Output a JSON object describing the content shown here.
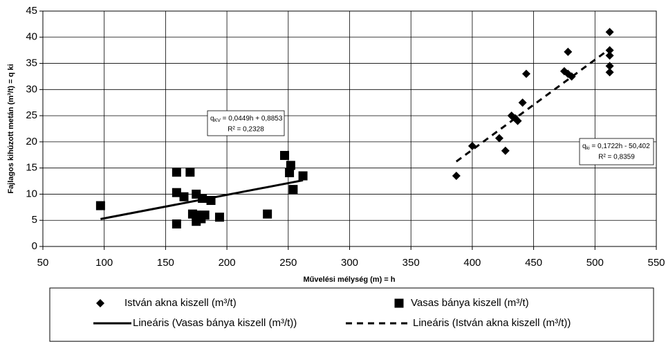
{
  "chart_data": {
    "type": "scatter",
    "xlabel": "Művelési mélység (m) = h",
    "ylabel": "Fajlagos kihúzott metán (m³/t) = q  ki",
    "xlim": [
      50,
      550
    ],
    "xticks": [
      50,
      100,
      150,
      200,
      250,
      300,
      350,
      400,
      450,
      500,
      550
    ],
    "ylim": [
      0,
      45
    ],
    "yticks": [
      0,
      5,
      10,
      15,
      20,
      25,
      30,
      35,
      40,
      45
    ],
    "grid": true,
    "series": [
      {
        "name": "István akna kiszell (m³/t)",
        "marker": "diamond",
        "color": "#000000",
        "x": [
          387,
          400,
          422,
          427,
          432,
          435,
          437,
          441,
          444,
          475,
          478,
          478,
          481,
          512,
          512,
          512,
          512,
          512
        ],
        "values": [
          13.5,
          19.2,
          20.7,
          18.3,
          25,
          24.5,
          24,
          27.5,
          33,
          33.5,
          37.2,
          33,
          32.5,
          41,
          37.5,
          36.5,
          34.5,
          33.3
        ]
      },
      {
        "name": "Vasas bánya kiszell (m³/t)",
        "marker": "square",
        "color": "#000000",
        "x": [
          97,
          159,
          159,
          159,
          165,
          170,
          172,
          175,
          175,
          175,
          179,
          180,
          182,
          187,
          194,
          233,
          247,
          251,
          252,
          254,
          262
        ],
        "values": [
          7.8,
          14.2,
          10.3,
          4.3,
          9.5,
          14.2,
          6.2,
          10,
          6,
          4.8,
          5.3,
          9.2,
          6,
          8.8,
          5.6,
          6.2,
          17.4,
          14.1,
          15.5,
          10.9,
          13.5
        ]
      }
    ],
    "trendlines": [
      {
        "name": "Lineáris (Vasas bánya kiszell (m³/t))",
        "style": "solid",
        "x": [
          97,
          262
        ],
        "values": [
          5.24,
          12.65
        ]
      },
      {
        "name": "Lineáris (István akna kiszell (m³/t))",
        "style": "dashed",
        "x": [
          387,
          512
        ],
        "values": [
          16.24,
          37.76
        ]
      }
    ],
    "annotations": [
      {
        "q": "q",
        "sub": "KV",
        "eq": " = 0,0449h + 0,8853",
        "r2": "R² = 0,2328"
      },
      {
        "q": "q",
        "sub": "ki",
        "eq": " = 0,1722h - 50,402",
        "r2": "R² = 0,8359"
      }
    ]
  }
}
